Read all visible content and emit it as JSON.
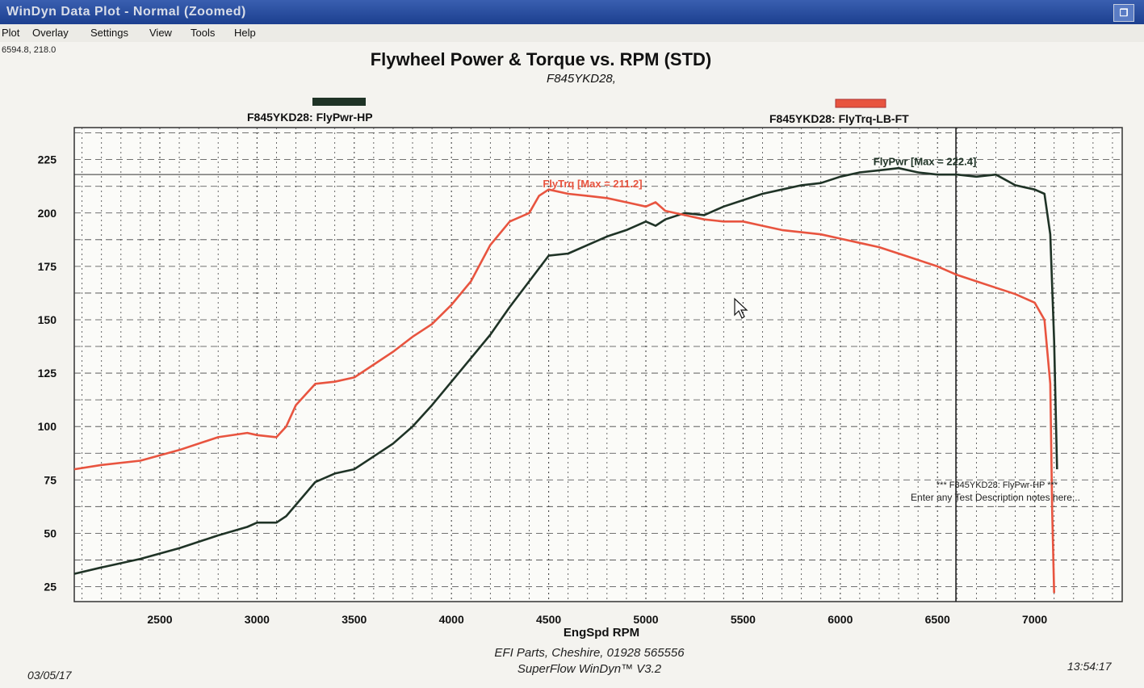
{
  "window": {
    "title": "WinDyn Data Plot - Normal   (Zoomed)",
    "restore_icon": "restore-window-icon"
  },
  "menu": [
    "Plot",
    "Overlay",
    "Settings",
    "View",
    "Tools",
    "Help"
  ],
  "cursor_readout": "6594.8, 218.0",
  "chart_data": {
    "type": "line",
    "title": "Flywheel Power & Torque vs. RPM (STD)",
    "subtitle": "F845YKD28,",
    "xlabel": "EngSpd RPM",
    "ylabel": "",
    "xlim": [
      2060,
      7450
    ],
    "ylim": [
      18,
      240
    ],
    "xticks": [
      2500,
      3000,
      3500,
      4000,
      4500,
      5000,
      5500,
      6000,
      6500,
      7000
    ],
    "yticks": [
      25,
      50,
      75,
      100,
      125,
      150,
      175,
      200,
      225
    ],
    "grid": true,
    "legend_position": "top",
    "series": [
      {
        "name": "F845YKD28: FlyPwr-HP",
        "color": "#1f3326",
        "max_label": "FlyPwr [Max = 222.4]",
        "x": [
          2060,
          2200,
          2400,
          2600,
          2800,
          2950,
          3000,
          3100,
          3150,
          3300,
          3400,
          3500,
          3600,
          3700,
          3800,
          3900,
          4000,
          4100,
          4200,
          4300,
          4400,
          4500,
          4600,
          4700,
          4800,
          4900,
          5000,
          5050,
          5100,
          5200,
          5300,
          5400,
          5500,
          5600,
          5700,
          5800,
          5900,
          6000,
          6100,
          6200,
          6300,
          6400,
          6500,
          6600,
          6700,
          6800,
          6900,
          7000,
          7050,
          7080,
          7100,
          7115
        ],
        "y": [
          31,
          34,
          38,
          43,
          49,
          53,
          55,
          55,
          58,
          74,
          78,
          80,
          86,
          92,
          100,
          110,
          121,
          132,
          143,
          156,
          168,
          180,
          181,
          185,
          189,
          192,
          196,
          194,
          197,
          200,
          199,
          203,
          206,
          209,
          211,
          213,
          214,
          217,
          219,
          220,
          221,
          219,
          218,
          218,
          217,
          218,
          213,
          211,
          209,
          190,
          140,
          80
        ]
      },
      {
        "name": "F845YKD28: FlyTrq-LB-FT",
        "color": "#e8543f",
        "max_label": "FlyTrq [Max = 211.2]",
        "x": [
          2060,
          2200,
          2400,
          2600,
          2800,
          2950,
          3000,
          3100,
          3150,
          3200,
          3300,
          3400,
          3500,
          3600,
          3700,
          3800,
          3900,
          4000,
          4100,
          4200,
          4300,
          4400,
          4450,
          4500,
          4600,
          4700,
          4800,
          4900,
          5000,
          5050,
          5100,
          5200,
          5300,
          5400,
          5500,
          5600,
          5700,
          5800,
          5900,
          6000,
          6100,
          6200,
          6300,
          6400,
          6500,
          6600,
          6700,
          6800,
          6900,
          7000,
          7050,
          7080,
          7090,
          7100
        ],
        "y": [
          80,
          82,
          84,
          89,
          95,
          97,
          96,
          95,
          100,
          110,
          120,
          121,
          123,
          129,
          135,
          142,
          148,
          157,
          168,
          185,
          196,
          200,
          208,
          211,
          209,
          208,
          207,
          205,
          203,
          205,
          201,
          199,
          197,
          196,
          196,
          194,
          192,
          191,
          190,
          188,
          186,
          184,
          181,
          178,
          175,
          171,
          168,
          165,
          162,
          158,
          150,
          120,
          60,
          22
        ]
      }
    ],
    "annotations": [
      "*** F845YKD28: FlyPwr-HP ***",
      "Enter any Test Description notes here..."
    ],
    "cursor_line_x": 6594.8,
    "max_line_y": 218.0
  },
  "footer": {
    "line1": "EFI Parts, Cheshire, 01928 565556",
    "line2": "SuperFlow WinDyn™ V3.2",
    "date": "03/05/17",
    "time": "13:54:17"
  }
}
